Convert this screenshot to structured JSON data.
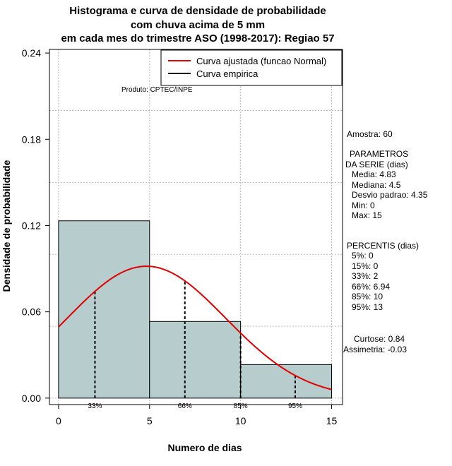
{
  "chart_data": {
    "type": "bar",
    "title_lines": [
      "Histograma e curva de densidade de probabilidade",
      "com chuva acima de 5 mm",
      "em cada mes do trimestre ASO (1998-2017): Regiao 57"
    ],
    "xlabel": "Numero de dias",
    "ylabel": "Densidade de probabilidade",
    "xlim": [
      -0.5,
      15.6
    ],
    "ylim": [
      -0.0045,
      0.2425
    ],
    "x_ticks": [
      0,
      5,
      10,
      15
    ],
    "y_ticks": [
      0.0,
      0.06,
      0.12,
      0.18,
      0.24
    ],
    "y_tick_labels": [
      "0.00",
      "0.06",
      "0.12",
      "0.18",
      "0.24"
    ],
    "grid": true,
    "bins": [
      {
        "x0": 0,
        "x1": 5,
        "density": 0.1233
      },
      {
        "x0": 5,
        "x1": 10,
        "density": 0.0533
      },
      {
        "x0": 10,
        "x1": 15,
        "density": 0.0233
      }
    ],
    "normal_fit": {
      "mean": 4.83,
      "sd": 4.35,
      "x_from": 0,
      "x_to": 15
    },
    "percentile_lines": [
      {
        "x": 2,
        "label": "33%"
      },
      {
        "x": 6.94,
        "label": "66%"
      },
      {
        "x": 10,
        "label": "85%"
      },
      {
        "x": 13,
        "label": "95%"
      }
    ],
    "legend": [
      {
        "label": "Curva ajustada (funcao Normal)",
        "color": "#e00000"
      },
      {
        "label": "Curva empirica",
        "color": "#000000"
      }
    ],
    "legend_position": "top-right",
    "bar_color": "#b7cccc",
    "curve_color": "#e00000"
  },
  "credit": "Produto: CPTEC/INPE",
  "stats": {
    "amostra": "Amostra: 60",
    "parametros_title_1": "PARAMETROS",
    "parametros_title_2": "DA SERIE (dias)",
    "media": "Media: 4.83",
    "mediana": "Mediana: 4.5",
    "desvio": "Desvio padrao: 4.35",
    "min": "Min: 0",
    "max": "Max: 15",
    "percentis_title": "PERCENTIS (dias)",
    "p5": "5%: 0",
    "p15": "15%: 0",
    "p33": "33%: 2",
    "p66": "66%: 6.94",
    "p85": "85%: 10",
    "p95": "95%: 13",
    "curtose": "Curtose: 0.84",
    "assimetria": "Assimetria: -0.03"
  }
}
